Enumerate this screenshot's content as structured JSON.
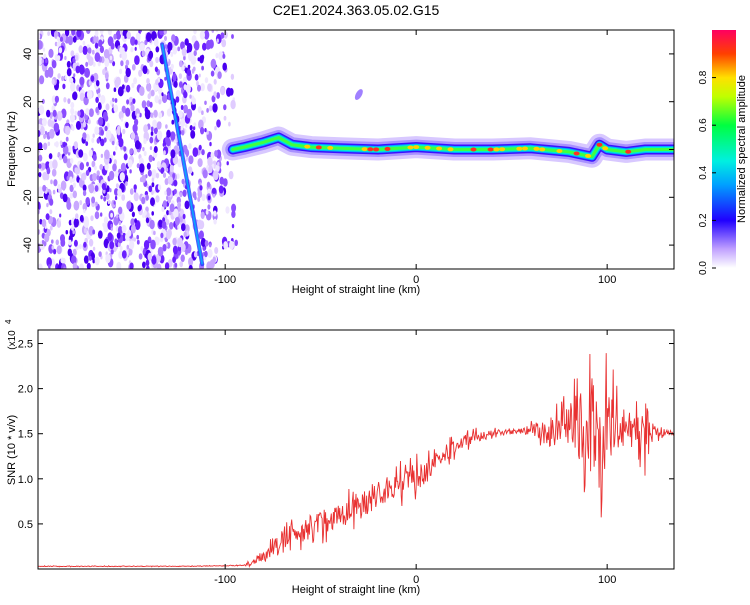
{
  "title": "C2E1.2024.363.05.02.G15",
  "top_panel": {
    "xlabel": "Height of straight line (km)",
    "ylabel": "Frequency (Hz)",
    "colorbar_label": "Normalized spectral amplitude"
  },
  "bottom_panel": {
    "xlabel": "Height of straight line (km)",
    "ylabel": "SNR (10 * v/v)",
    "scale_label": "(x10",
    "scale_exp": "4"
  },
  "colors": {
    "snr_line": "#e83030",
    "frame": "#000000"
  },
  "chart_data": [
    {
      "type": "heatmap",
      "title": "C2E1.2024.363.05.02.G15",
      "xlabel": "Height of straight line (km)",
      "ylabel": "Frequency (Hz)",
      "xlim": [
        -198,
        135
      ],
      "ylim": [
        -50,
        50
      ],
      "x_ticks": [
        -100,
        0,
        100
      ],
      "x_tick_labels": [
        "-100",
        "0",
        "100"
      ],
      "y_ticks": [
        -40,
        -20,
        0,
        20,
        40
      ],
      "y_tick_labels": [
        "-40",
        "-20",
        "0",
        "20",
        "40"
      ],
      "colorbar": {
        "label": "Normalized spectral amplitude",
        "range": [
          0,
          1
        ],
        "ticks": [
          0.0,
          0.2,
          0.4,
          0.6,
          0.8
        ],
        "tick_labels": [
          "0.0",
          "0.2",
          "0.4",
          "0.6",
          "0.8"
        ]
      },
      "features": {
        "noise_region_x": [
          -198,
          -92
        ],
        "noise_density": 0.45,
        "diagonal_track": {
          "x_start": -133,
          "f_start": 44,
          "x_end": -112,
          "f_end": -48
        },
        "carrier_band": {
          "x_start": -96,
          "x_end": 135,
          "freq_center": 0,
          "points": [
            [
              -96,
              0
            ],
            [
              -90,
              1
            ],
            [
              -80,
              3
            ],
            [
              -72,
              5
            ],
            [
              -65,
              2
            ],
            [
              -55,
              1
            ],
            [
              -40,
              0.5
            ],
            [
              -20,
              0
            ],
            [
              0,
              1
            ],
            [
              20,
              0
            ],
            [
              40,
              0
            ],
            [
              60,
              0.5
            ],
            [
              80,
              -1
            ],
            [
              92,
              -3
            ],
            [
              96,
              2
            ],
            [
              100,
              0
            ],
            [
              110,
              -1
            ],
            [
              120,
              0
            ],
            [
              135,
              0
            ]
          ]
        },
        "blob": {
          "x": -30,
          "f": 23
        }
      }
    },
    {
      "type": "line",
      "xlabel": "Height of straight line (km)",
      "ylabel": "SNR (10 * v/v)",
      "xlim": [
        -198,
        135
      ],
      "ylim": [
        0,
        2.65
      ],
      "scale": "x10^4",
      "x_ticks": [
        -100,
        0,
        100
      ],
      "x_tick_labels": [
        "-100",
        "0",
        "100"
      ],
      "y_ticks": [
        0.5,
        1.0,
        1.5,
        2.0,
        2.5
      ],
      "y_tick_labels": [
        "0.5",
        "1.0",
        "1.5",
        "2.0",
        "2.5"
      ],
      "series": [
        {
          "envelope_x": [
            -198,
            -160,
            -120,
            -90,
            -85,
            -80,
            -75,
            -70,
            -65,
            -60,
            -55,
            -50,
            -45,
            -40,
            -35,
            -30,
            -25,
            -20,
            -15,
            -10,
            -5,
            0,
            5,
            10,
            15,
            20,
            25,
            30,
            40,
            50,
            60,
            65,
            70,
            75,
            80,
            85,
            90,
            95,
            100,
            105,
            110,
            115,
            120,
            125,
            130,
            135
          ],
          "envelope_y": [
            0.03,
            0.03,
            0.03,
            0.04,
            0.08,
            0.15,
            0.22,
            0.3,
            0.38,
            0.42,
            0.48,
            0.52,
            0.56,
            0.6,
            0.65,
            0.7,
            0.76,
            0.82,
            0.88,
            0.93,
            0.97,
            1.02,
            1.07,
            1.15,
            1.25,
            1.35,
            1.42,
            1.46,
            1.5,
            1.52,
            1.54,
            1.53,
            1.5,
            1.52,
            1.56,
            1.58,
            1.55,
            1.5,
            1.55,
            1.58,
            1.56,
            1.55,
            1.57,
            1.54,
            1.52,
            1.5
          ],
          "amplitude_x": [
            -198,
            -90,
            -85,
            -70,
            -50,
            -30,
            -10,
            0,
            20,
            40,
            55,
            60,
            70,
            80,
            90,
            95,
            100,
            105,
            110,
            115,
            120,
            125,
            135
          ],
          "amplitude_y": [
            0.005,
            0.005,
            0.05,
            0.15,
            0.2,
            0.22,
            0.2,
            0.2,
            0.12,
            0.05,
            0.04,
            0.1,
            0.2,
            0.35,
            0.65,
            0.9,
            0.85,
            0.4,
            0.1,
            0.25,
            0.5,
            0.1,
            0.03
          ]
        }
      ]
    }
  ]
}
